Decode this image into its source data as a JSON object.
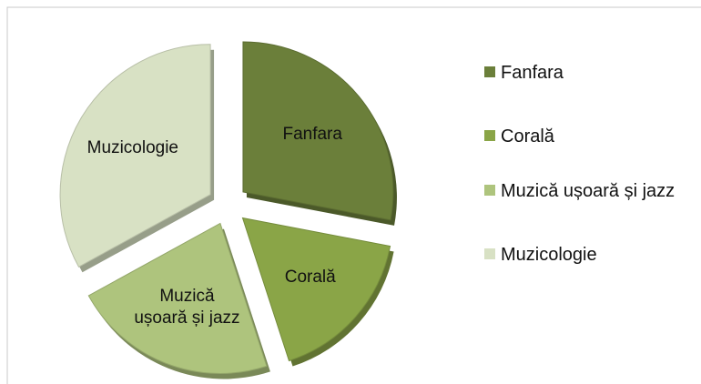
{
  "chart_data": {
    "type": "pie",
    "categories": [
      "Fanfara",
      "Corală",
      "Muzică ușoară și jazz",
      "Muzicologie"
    ],
    "values": [
      28,
      17,
      22,
      33
    ],
    "colors": [
      "#6b7f3a",
      "#8aa547",
      "#aec47d",
      "#d8e1c4"
    ],
    "legend": "right"
  }
}
